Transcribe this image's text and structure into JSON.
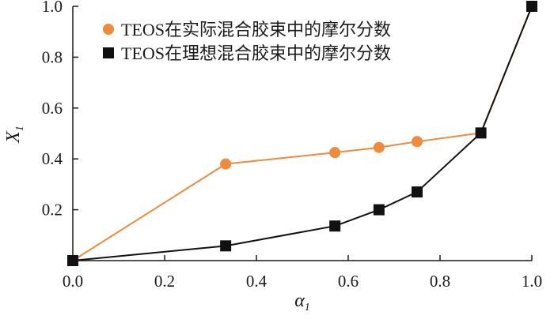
{
  "chart_data": {
    "type": "line",
    "xlabel": "α",
    "xlabel_sub": "1",
    "ylabel": "X",
    "ylabel_sub": "1",
    "xlim": [
      0,
      1
    ],
    "ylim": [
      0,
      1
    ],
    "xticks": [
      "0.0",
      "0.2",
      "0.4",
      "0.6",
      "0.8",
      "1.0"
    ],
    "yticks": [
      "0.2",
      "0.4",
      "0.6",
      "0.8",
      "1.0"
    ],
    "grid": false,
    "legend_position": "top-left",
    "series": [
      {
        "name": "TEOS在实际混合胶束中的摩尔分数",
        "color": "#f08a3c",
        "marker": "circle",
        "x": [
          0.0,
          0.333,
          0.571,
          0.667,
          0.75,
          0.889,
          1.0
        ],
        "y": [
          0.0,
          0.38,
          0.425,
          0.445,
          0.468,
          0.502,
          1.0
        ]
      },
      {
        "name": "TEOS在理想混合胶束中的摩尔分数",
        "color": "#111111",
        "marker": "square",
        "x": [
          0.0,
          0.333,
          0.571,
          0.667,
          0.75,
          0.889,
          1.0
        ],
        "y": [
          0.0,
          0.058,
          0.136,
          0.2,
          0.27,
          0.502,
          1.0
        ]
      }
    ]
  }
}
